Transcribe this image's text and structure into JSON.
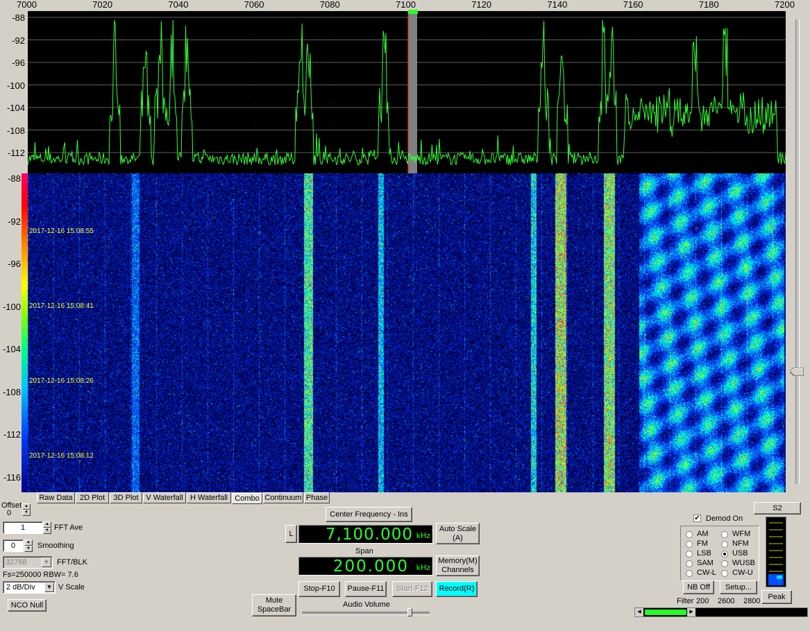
{
  "spectrum": {
    "freq_ticks": [
      "7000",
      "7020",
      "7040",
      "7060",
      "7080",
      "7100",
      "7120",
      "7140",
      "7160",
      "7180",
      "7200"
    ],
    "db_ticks": [
      "-88",
      "-92",
      "-96",
      "-100",
      "-104",
      "-108",
      "-112"
    ],
    "colors": {
      "trace": "#33ff33",
      "background": "#000000",
      "center_marker": "#808080"
    },
    "peaks_khz": [
      7023,
      7031,
      7035,
      7038,
      7042,
      7072,
      7074,
      7094,
      7136,
      7141,
      7152,
      7154,
      7176,
      7184
    ]
  },
  "waterfall": {
    "db_ticks": [
      "-88",
      "-92",
      "-96",
      "-100",
      "-104",
      "-108",
      "-112",
      "-116"
    ],
    "timestamps": [
      "2017-12-16 15:08:55",
      "2017-12-16 15:08:41",
      "2017-12-16 15:08:26",
      "2017-12-16 15:08:12"
    ]
  },
  "tabs": [
    "Raw Data",
    "2D Plot",
    "3D Plot",
    "V Waterfall",
    "H Waterfall",
    "Combo",
    "Continuum",
    "Phase"
  ],
  "active_tab": "Combo",
  "left_panel": {
    "offset_label": "Offset",
    "offset_value": "0",
    "fft_ave_value": "1",
    "fft_ave_label": "FFT Ave",
    "smoothing_value": "0",
    "smoothing_label": "Smoothing",
    "fft_blk_value": "32768",
    "fft_blk_label": "FFT/BLK",
    "fs_info": "Fs=250000 RBW= 7.6",
    "vscale_value": "2 dB/Div",
    "vscale_label": "V Scale",
    "nco_null": "NCO Null"
  },
  "center": {
    "center_freq_button": "Center Frequency - Ins",
    "l_button": "L",
    "frequency": "7,100.000",
    "freq_unit": "kHz",
    "auto_scale": [
      "Auto Scale",
      "(A)"
    ],
    "span_label": "Span",
    "span": "200.000",
    "span_unit": "kHz",
    "memory": [
      "Memory(M)",
      "Channels"
    ],
    "mute": [
      "Mute",
      "SpaceBar"
    ],
    "stop": "Stop-F10",
    "pause": "Pause-F11",
    "start": "Start-F12",
    "record": "Record(R)",
    "audio_volume": "Audio Volume",
    "audio_volume_level": 0.88
  },
  "demod": {
    "demod_on_label": "Demod On",
    "demod_on": true,
    "modes_left": [
      "AM",
      "FM",
      "LSB",
      "SAM",
      "CW-L"
    ],
    "modes_right": [
      "WFM",
      "NFM",
      "USB",
      "WUSB",
      "CW-U"
    ],
    "selected": "USB",
    "nb_off": "NB Off",
    "setup": "Setup...",
    "filter_label": "Filter",
    "filter_values": [
      "200",
      "2600",
      "2800"
    ],
    "s_meter": "S2",
    "peak": "Peak"
  }
}
